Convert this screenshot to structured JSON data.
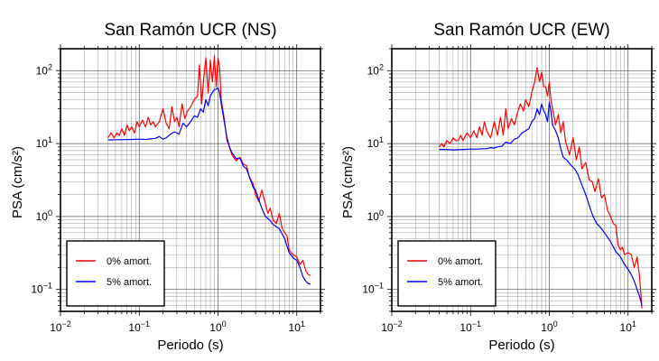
{
  "chart_data": [
    {
      "type": "line",
      "title": "San Ramón UCR (NS)",
      "xlabel": "Periodo (s)",
      "ylabel": "PSA (cm/s²)",
      "xscale": "log",
      "yscale": "log",
      "xlim": [
        0.01,
        20
      ],
      "ylim": [
        0.05,
        200
      ],
      "grid": true,
      "legend_position": "bottom-left",
      "xticks": [
        {
          "value": 0.01,
          "base": "10",
          "exp": "−2"
        },
        {
          "value": 0.1,
          "base": "10",
          "exp": "−1"
        },
        {
          "value": 1,
          "base": "10",
          "exp": "0"
        },
        {
          "value": 10,
          "base": "10",
          "exp": "1"
        }
      ],
      "yticks": [
        {
          "value": 0.1,
          "base": "10",
          "exp": "−1"
        },
        {
          "value": 1,
          "base": "10",
          "exp": "0"
        },
        {
          "value": 10,
          "base": "10",
          "exp": "1"
        },
        {
          "value": 100,
          "base": "10",
          "exp": "2"
        }
      ],
      "series": [
        {
          "name": "0% amort.",
          "color": "#ff0000",
          "x": [
            0.04,
            0.044,
            0.048,
            0.052,
            0.056,
            0.06,
            0.065,
            0.07,
            0.075,
            0.08,
            0.087,
            0.094,
            0.1,
            0.11,
            0.12,
            0.13,
            0.14,
            0.15,
            0.16,
            0.18,
            0.2,
            0.22,
            0.24,
            0.26,
            0.28,
            0.3,
            0.32,
            0.35,
            0.38,
            0.41,
            0.45,
            0.5,
            0.55,
            0.58,
            0.62,
            0.66,
            0.7,
            0.75,
            0.8,
            0.85,
            0.9,
            0.95,
            1.0,
            1.05,
            1.1,
            1.2,
            1.3,
            1.4,
            1.5,
            1.7,
            1.9,
            2.1,
            2.3,
            2.5,
            2.8,
            3.0,
            3.3,
            3.6,
            4.0,
            4.3,
            4.6,
            5.0,
            5.5,
            6.0,
            6.5,
            7.0,
            7.5,
            8.0,
            8.5,
            9.0,
            10.0,
            11.0,
            12.0,
            13.0,
            14.0,
            15.0
          ],
          "y": [
            12,
            14,
            12,
            14,
            13,
            16,
            13,
            18,
            15,
            17,
            14,
            20,
            17,
            21,
            17,
            23,
            18,
            20,
            17,
            20,
            30,
            19,
            16,
            32,
            20,
            23,
            17,
            35,
            22,
            28,
            32,
            40,
            45,
            120,
            35,
            80,
            150,
            50,
            140,
            70,
            160,
            60,
            150,
            110,
            40,
            22,
            11,
            9,
            7,
            5.8,
            6.5,
            5.2,
            5.0,
            3.5,
            2.8,
            2.0,
            1.6,
            2.3,
            1.5,
            1.1,
            1.3,
            0.9,
            0.8,
            1.1,
            0.7,
            0.6,
            0.55,
            0.35,
            0.32,
            0.3,
            0.28,
            0.22,
            0.25,
            0.18,
            0.16,
            0.155
          ]
        },
        {
          "name": "5% amort.",
          "color": "#0000ff",
          "x": [
            0.04,
            0.05,
            0.06,
            0.08,
            0.1,
            0.12,
            0.14,
            0.16,
            0.18,
            0.2,
            0.22,
            0.25,
            0.28,
            0.32,
            0.36,
            0.4,
            0.45,
            0.5,
            0.55,
            0.6,
            0.65,
            0.7,
            0.75,
            0.8,
            0.85,
            0.9,
            0.95,
            1.0,
            1.05,
            1.1,
            1.2,
            1.3,
            1.4,
            1.5,
            1.7,
            1.9,
            2.1,
            2.3,
            2.5,
            2.8,
            3.0,
            3.3,
            3.6,
            4.0,
            4.5,
            5.0,
            6.0,
            7.0,
            8.0,
            9.0,
            10.0,
            11.0,
            12.0,
            13.0,
            14.0,
            15.0
          ],
          "y": [
            11.2,
            11.3,
            11.3,
            11.4,
            11.5,
            11.4,
            11.6,
            11.8,
            12.5,
            11.5,
            12.0,
            13.5,
            14.5,
            13.5,
            19.0,
            17.0,
            20.0,
            24.0,
            23.0,
            30.0,
            27.0,
            40.0,
            33.0,
            45.0,
            50.0,
            55.0,
            56.0,
            58.0,
            50.0,
            35.0,
            20.0,
            12.0,
            9.0,
            7.5,
            6.2,
            6.3,
            4.9,
            4.5,
            3.5,
            2.5,
            2.3,
            1.7,
            1.3,
            1.0,
            0.9,
            0.78,
            0.68,
            0.5,
            0.32,
            0.27,
            0.25,
            0.2,
            0.15,
            0.13,
            0.12,
            0.118
          ]
        }
      ]
    },
    {
      "type": "line",
      "title": "San Ramón UCR (EW)",
      "xlabel": "Periodo (s)",
      "ylabel": "PSA (cm/s²)",
      "xscale": "log",
      "yscale": "log",
      "xlim": [
        0.01,
        20
      ],
      "ylim": [
        0.05,
        200
      ],
      "grid": true,
      "legend_position": "bottom-left",
      "xticks": [
        {
          "value": 0.01,
          "base": "10",
          "exp": "−2"
        },
        {
          "value": 0.1,
          "base": "10",
          "exp": "−1"
        },
        {
          "value": 1,
          "base": "10",
          "exp": "0"
        },
        {
          "value": 10,
          "base": "10",
          "exp": "1"
        }
      ],
      "yticks": [
        {
          "value": 0.1,
          "base": "10",
          "exp": "−1"
        },
        {
          "value": 1,
          "base": "10",
          "exp": "0"
        },
        {
          "value": 10,
          "base": "10",
          "exp": "1"
        },
        {
          "value": 100,
          "base": "10",
          "exp": "2"
        }
      ],
      "series": [
        {
          "name": "0% amort.",
          "color": "#ff0000",
          "x": [
            0.04,
            0.043,
            0.046,
            0.05,
            0.055,
            0.06,
            0.065,
            0.07,
            0.075,
            0.08,
            0.09,
            0.1,
            0.11,
            0.12,
            0.13,
            0.14,
            0.15,
            0.16,
            0.18,
            0.2,
            0.22,
            0.24,
            0.26,
            0.28,
            0.3,
            0.33,
            0.36,
            0.4,
            0.43,
            0.47,
            0.5,
            0.55,
            0.6,
            0.65,
            0.7,
            0.75,
            0.8,
            0.85,
            0.9,
            0.95,
            1.0,
            1.05,
            1.1,
            1.2,
            1.3,
            1.4,
            1.5,
            1.6,
            1.8,
            2.0,
            2.2,
            2.4,
            2.6,
            2.9,
            3.2,
            3.5,
            3.8,
            4.2,
            4.6,
            5.0,
            5.5,
            6.0,
            6.5,
            7.0,
            7.5,
            8.0,
            8.5,
            9.0,
            10.0,
            11.0,
            12.0,
            13.0,
            14.0,
            15.0
          ],
          "y": [
            9,
            10,
            9,
            11,
            10,
            12,
            11,
            11,
            13,
            11,
            14,
            12,
            15,
            12,
            17,
            13,
            20,
            15,
            12,
            20,
            13,
            23,
            13,
            30,
            16,
            22,
            18,
            28,
            35,
            28,
            40,
            32,
            50,
            70,
            110,
            70,
            95,
            60,
            60,
            45,
            70,
            40,
            30,
            18,
            25,
            14,
            20,
            11,
            7,
            12,
            6,
            9,
            4.5,
            5.5,
            3.2,
            3.0,
            2.2,
            3.3,
            1.8,
            2.0,
            1.2,
            1.0,
            0.8,
            0.75,
            0.4,
            0.35,
            0.38,
            0.3,
            0.32,
            0.3,
            0.2,
            0.28,
            0.15,
            0.055
          ]
        },
        {
          "name": "5% amort.",
          "color": "#0000ff",
          "x": [
            0.04,
            0.05,
            0.06,
            0.08,
            0.1,
            0.12,
            0.14,
            0.16,
            0.18,
            0.2,
            0.22,
            0.25,
            0.28,
            0.32,
            0.36,
            0.4,
            0.45,
            0.5,
            0.55,
            0.6,
            0.65,
            0.7,
            0.75,
            0.8,
            0.85,
            0.9,
            0.95,
            1.0,
            1.05,
            1.1,
            1.2,
            1.3,
            1.4,
            1.5,
            1.7,
            1.9,
            2.1,
            2.3,
            2.5,
            2.8,
            3.0,
            3.3,
            3.6,
            4.0,
            4.5,
            5.0,
            6.0,
            7.0,
            8.0,
            9.0,
            10.0,
            11.0,
            12.0,
            13.0,
            14.0,
            15.0
          ],
          "y": [
            8.3,
            8.3,
            8.2,
            8.3,
            8.4,
            8.4,
            8.5,
            8.5,
            8.8,
            8.7,
            9.0,
            9.2,
            10.5,
            10.0,
            11.5,
            12.0,
            14.0,
            15.0,
            16.0,
            20.0,
            22.0,
            30.0,
            25.0,
            35.0,
            28.0,
            25.0,
            20.0,
            37.0,
            28.0,
            18.0,
            15.0,
            12.0,
            8.5,
            6.5,
            5.8,
            5.0,
            4.5,
            3.8,
            3.0,
            2.2,
            1.8,
            1.3,
            1.0,
            0.8,
            0.7,
            0.6,
            0.45,
            0.33,
            0.28,
            0.22,
            0.19,
            0.16,
            0.13,
            0.1,
            0.08,
            0.06
          ]
        }
      ]
    }
  ]
}
